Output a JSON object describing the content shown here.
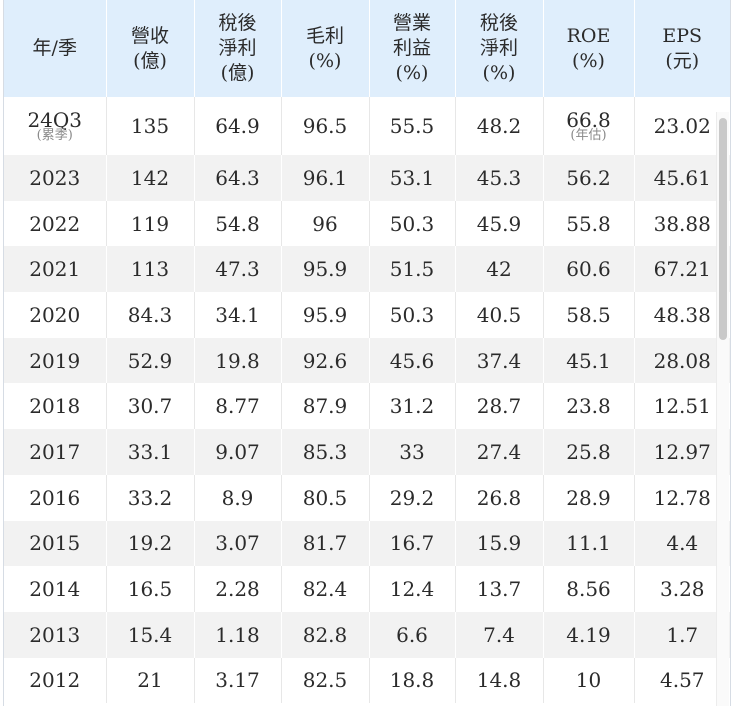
{
  "table": {
    "headers": [
      [
        "年/季"
      ],
      [
        "營收",
        "(億)"
      ],
      [
        "稅後",
        "淨利",
        "(億)"
      ],
      [
        "毛利",
        "(%)"
      ],
      [
        "營業",
        "利益",
        "(%)"
      ],
      [
        "稅後",
        "淨利",
        "(%)"
      ],
      [
        "ROE",
        "(%)"
      ],
      [
        "EPS",
        "(元)"
      ]
    ],
    "first_row": {
      "period": "24Q3",
      "period_note": "(累季)",
      "revenue": "135",
      "net_income": "64.9",
      "gross_margin": "96.5",
      "operating_margin": "55.5",
      "net_margin": "48.2",
      "roe": "66.8",
      "roe_note": "(年估)",
      "eps": "23.02"
    },
    "rows": [
      [
        "2023",
        "142",
        "64.3",
        "96.1",
        "53.1",
        "45.3",
        "56.2",
        "45.61"
      ],
      [
        "2022",
        "119",
        "54.8",
        "96",
        "50.3",
        "45.9",
        "55.8",
        "38.88"
      ],
      [
        "2021",
        "113",
        "47.3",
        "95.9",
        "51.5",
        "42",
        "60.6",
        "67.21"
      ],
      [
        "2020",
        "84.3",
        "34.1",
        "95.9",
        "50.3",
        "40.5",
        "58.5",
        "48.38"
      ],
      [
        "2019",
        "52.9",
        "19.8",
        "92.6",
        "45.6",
        "37.4",
        "45.1",
        "28.08"
      ],
      [
        "2018",
        "30.7",
        "8.77",
        "87.9",
        "31.2",
        "28.7",
        "23.8",
        "12.51"
      ],
      [
        "2017",
        "33.1",
        "9.07",
        "85.3",
        "33",
        "27.4",
        "25.8",
        "12.97"
      ],
      [
        "2016",
        "33.2",
        "8.9",
        "80.5",
        "29.2",
        "26.8",
        "28.9",
        "12.78"
      ],
      [
        "2015",
        "19.2",
        "3.07",
        "81.7",
        "16.7",
        "15.9",
        "11.1",
        "4.4"
      ],
      [
        "2014",
        "16.5",
        "2.28",
        "82.4",
        "12.4",
        "13.7",
        "8.56",
        "3.28"
      ],
      [
        "2013",
        "15.4",
        "1.18",
        "82.8",
        "6.6",
        "7.4",
        "4.19",
        "1.7"
      ],
      [
        "2012",
        "21",
        "3.17",
        "82.5",
        "18.8",
        "14.8",
        "10",
        "4.57"
      ]
    ]
  },
  "colors": {
    "header_bg": "#dfeefc",
    "row_alt_bg": "#f2f2f2",
    "row_bg": "#ffffff",
    "text": "#2b2b2b",
    "note_text": "#8a8a8a",
    "scrollbar_thumb": "#c9c9c9"
  },
  "scroll": {
    "thumb_fraction_visible": 0.37
  }
}
